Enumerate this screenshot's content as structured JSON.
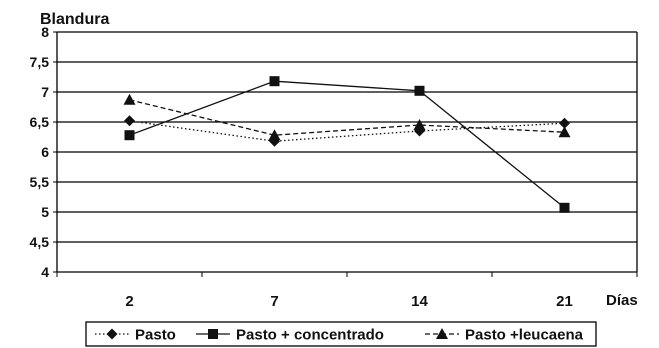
{
  "chart_data": {
    "type": "line",
    "ylabel": "Blandura",
    "xlabel": "Días",
    "categories": [
      "2",
      "7",
      "14",
      "21"
    ],
    "y_ticks": [
      "4",
      "4,5",
      "5",
      "5,5",
      "6",
      "6,5",
      "7",
      "7,5",
      "8"
    ],
    "ylim": [
      4,
      8
    ],
    "grid": true,
    "legend_position": "bottom",
    "series": [
      {
        "name": "Pasto",
        "values": [
          6.52,
          6.18,
          6.35,
          6.48
        ],
        "marker": "diamond",
        "dash": "dotted"
      },
      {
        "name": "Pasto + concentrado",
        "values": [
          6.28,
          7.18,
          7.02,
          5.07
        ],
        "marker": "square",
        "dash": "solid"
      },
      {
        "name": "Pasto +leucaena",
        "values": [
          6.87,
          6.28,
          6.45,
          6.33
        ],
        "marker": "triangle",
        "dash": "dashed"
      }
    ]
  }
}
